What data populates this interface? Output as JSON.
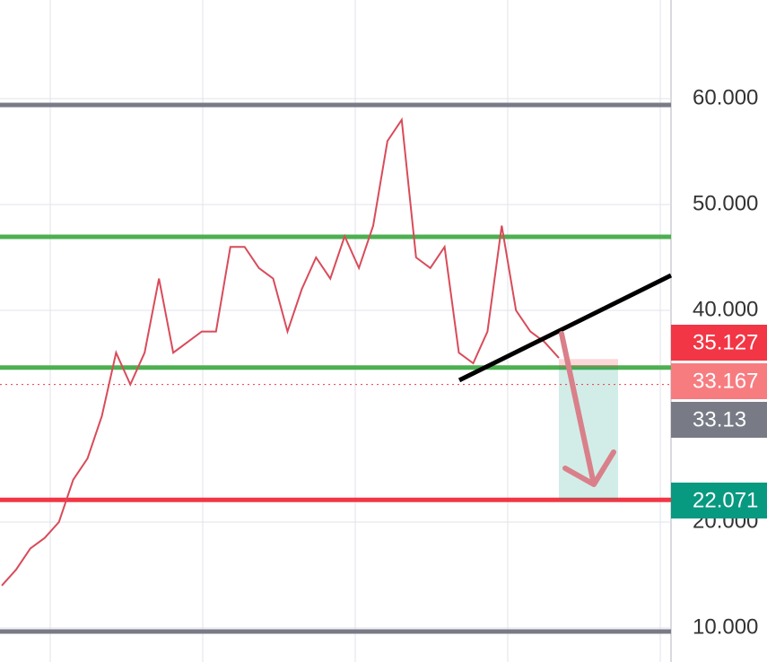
{
  "chart_data": {
    "type": "line",
    "series": [
      {
        "color": "#d94b5a",
        "values": [
          14,
          15.5,
          17.5,
          18.5,
          20,
          24,
          26,
          30,
          36,
          33,
          36,
          43,
          36,
          37,
          38,
          38,
          46,
          46,
          44,
          43,
          38,
          42,
          45,
          43,
          47,
          44,
          48,
          56,
          58,
          45,
          44,
          46,
          36,
          35,
          38,
          48,
          40,
          38,
          37,
          35.5
        ]
      }
    ],
    "ylim": [
      6.78,
      69.32
    ],
    "yticks": [
      {
        "value": 10,
        "label": "10.000"
      },
      {
        "value": 20,
        "label": "20.000"
      },
      {
        "value": 40,
        "label": "40.000"
      },
      {
        "value": 50,
        "label": "50.000"
      },
      {
        "value": 60,
        "label": "60.000"
      }
    ],
    "levels": [
      {
        "value": 59.4,
        "color": "#787b86"
      },
      {
        "value": 46.95,
        "color": "#4caf50"
      },
      {
        "value": 34.6,
        "color": "#4caf50"
      },
      {
        "value": 22.1,
        "color": "#f23645"
      },
      {
        "value": 9.66,
        "color": "#787b86"
      }
    ],
    "trendline": [
      33.4,
      43.3
    ],
    "short_position": {
      "stop": 35.4,
      "entry": 34.6,
      "target": 22.1
    },
    "price_labels": [
      {
        "value": 35.127,
        "color": "#f23645"
      },
      {
        "value": 33.167,
        "color": "#f77c80"
      },
      {
        "value": 33.13,
        "color": "#787b86"
      },
      {
        "value": 22.071,
        "color": "#089981"
      }
    ]
  }
}
